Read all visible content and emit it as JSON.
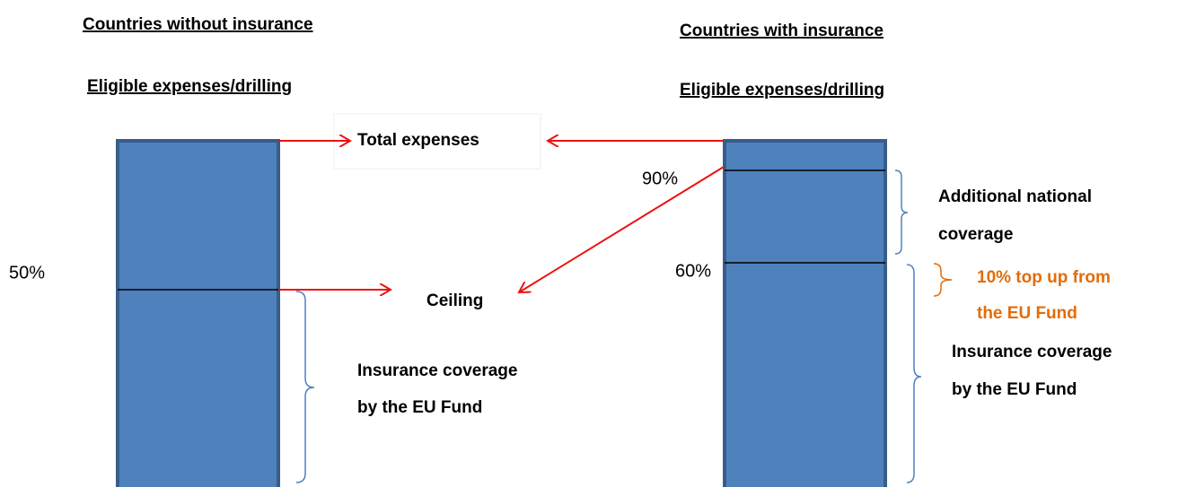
{
  "left": {
    "title": "Countries without insurance",
    "subtitle": "Eligible expenses/drilling",
    "percent": "50%",
    "ceiling": "Ceiling",
    "coverage": [
      "Insurance coverage",
      "by the EU Fund"
    ]
  },
  "total_expenses": "Total expenses",
  "right": {
    "title": "Countries with insurance",
    "subtitle": "Eligible expenses/drilling",
    "percent_upper": "90%",
    "percent_lower": "60%",
    "additional": [
      "Additional national",
      "coverage"
    ],
    "top_up": [
      "10% top up from",
      "the EU Fund"
    ],
    "coverage": [
      "Insurance coverage",
      "by the EU Fund"
    ]
  }
}
